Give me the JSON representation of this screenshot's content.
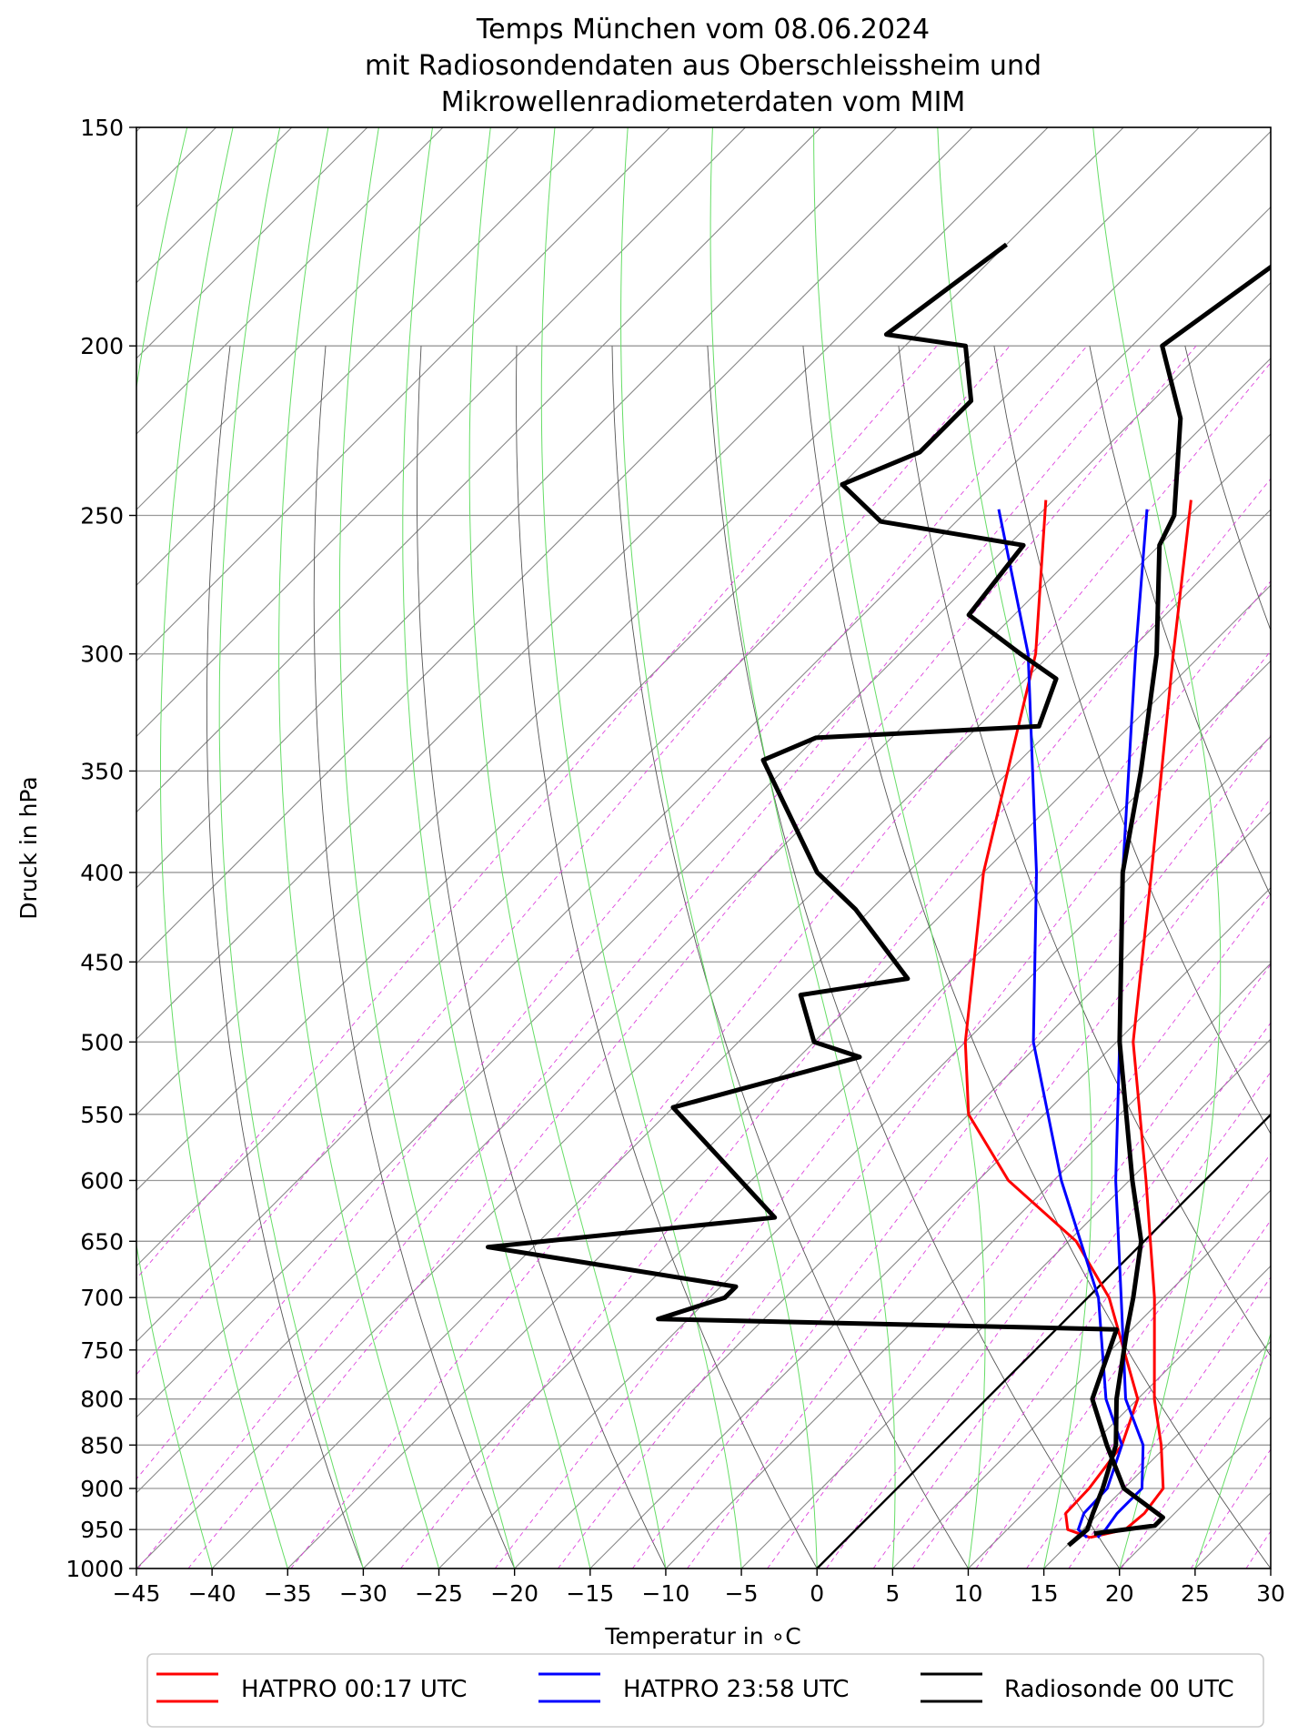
{
  "chart_data": {
    "type": "line",
    "title_lines": [
      "Temps München vom 08.06.2024",
      "mit Radiosondendaten aus Oberschleissheim und",
      "Mikrowellenradiometerdaten vom MIM"
    ],
    "xlabel": "Temperatur in ∘C",
    "ylabel": "Druck in hPa",
    "xlim": [
      -45,
      30
    ],
    "ylim": [
      1000,
      150
    ],
    "y_scale": "log",
    "projection": "skew-T log-p",
    "grid": true,
    "legend_position": "bottom-center",
    "x_ticks": [
      "−45",
      "−40",
      "−35",
      "−30",
      "−25",
      "−20",
      "−15",
      "−10",
      "−5",
      "0",
      "5",
      "10",
      "15",
      "20",
      "25",
      "30"
    ],
    "y_ticks": [
      "150",
      "200",
      "250",
      "300",
      "350",
      "400",
      "450",
      "500",
      "550",
      "600",
      "650",
      "700",
      "750",
      "800",
      "850",
      "900",
      "950",
      "1000"
    ],
    "x_tick_values": [
      -45,
      -40,
      -35,
      -30,
      -25,
      -20,
      -15,
      -10,
      -5,
      0,
      5,
      10,
      15,
      20,
      25,
      30
    ],
    "y_tick_values": [
      150,
      200,
      250,
      300,
      350,
      400,
      450,
      500,
      550,
      600,
      650,
      700,
      750,
      800,
      850,
      900,
      950,
      1000
    ],
    "background_colors": {
      "isotherm_and_isobar": "#888888",
      "dry_adiabat": "#555555",
      "moist_adiabat": "#66dd66",
      "mixing_ratio": "#dd44dd",
      "zero_isotherm": "#000000"
    },
    "series": [
      {
        "name": "HATPRO 00:17 UTC",
        "color": "#ff0000",
        "temperature": [
          [
            960,
            16.0
          ],
          [
            950,
            17.8
          ],
          [
            930,
            18.0
          ],
          [
            900,
            17.6
          ],
          [
            850,
            14.6
          ],
          [
            800,
            11.1
          ],
          [
            700,
            4.4
          ],
          [
            600,
            -3.9
          ],
          [
            500,
            -13.9
          ],
          [
            400,
            -23.9
          ],
          [
            300,
            -36.9
          ],
          [
            245,
            -45.9
          ]
        ],
        "dewpoint": [
          [
            960,
            16.0
          ],
          [
            950,
            14.0
          ],
          [
            930,
            12.8
          ],
          [
            900,
            12.7
          ],
          [
            850,
            12.0
          ],
          [
            800,
            10.0
          ],
          [
            700,
            1.4
          ],
          [
            650,
            -4.5
          ],
          [
            600,
            -13.0
          ],
          [
            550,
            -20.0
          ],
          [
            500,
            -25.0
          ],
          [
            400,
            -35.0
          ],
          [
            300,
            -46.0
          ],
          [
            245,
            -55.5
          ]
        ]
      },
      {
        "name": "HATPRO 23:58 UTC",
        "color": "#0000ff",
        "temperature": [
          [
            960,
            16.5
          ],
          [
            950,
            16.5
          ],
          [
            930,
            16.2
          ],
          [
            900,
            16.2
          ],
          [
            850,
            13.4
          ],
          [
            800,
            9.2
          ],
          [
            700,
            2.2
          ],
          [
            600,
            -5.9
          ],
          [
            500,
            -14.8
          ],
          [
            400,
            -25.8
          ],
          [
            300,
            -39.4
          ],
          [
            248,
            -48.2
          ]
        ],
        "dewpoint": [
          [
            960,
            15.8
          ],
          [
            950,
            14.7
          ],
          [
            930,
            14.0
          ],
          [
            900,
            13.9
          ],
          [
            850,
            12.0
          ],
          [
            800,
            7.9
          ],
          [
            700,
            0.7
          ],
          [
            600,
            -9.5
          ],
          [
            500,
            -20.5
          ],
          [
            400,
            -31.5
          ],
          [
            300,
            -46.5
          ],
          [
            248,
            -58.0
          ]
        ]
      },
      {
        "name": "Radiosonde 00 UTC",
        "color": "#000000",
        "temperature": [
          [
            970,
            15.1
          ],
          [
            950,
            15.3
          ],
          [
            930,
            14.6
          ],
          [
            900,
            13.6
          ],
          [
            850,
            11.6
          ],
          [
            800,
            8.6
          ],
          [
            730,
            4.7
          ],
          [
            700,
            3.0
          ],
          [
            650,
            -0.2
          ],
          [
            600,
            -4.8
          ],
          [
            500,
            -14.8
          ],
          [
            400,
            -25.8
          ],
          [
            350,
            -31.3
          ],
          [
            300,
            -38.0
          ],
          [
            260,
            -45.0
          ],
          [
            250,
            -46.0
          ],
          [
            220,
            -52.0
          ],
          [
            200,
            -58.0
          ],
          [
            180,
            -56.0
          ],
          [
            165,
            -53.0
          ],
          [
            150,
            -55.0
          ]
        ],
        "dewpoint": [
          [
            955,
            16.0
          ],
          [
            945,
            19.5
          ],
          [
            935,
            19.5
          ],
          [
            900,
            15.0
          ],
          [
            850,
            11.0
          ],
          [
            800,
            7.0
          ],
          [
            730,
            4.0
          ],
          [
            720,
            -27.0
          ],
          [
            700,
            -24.0
          ],
          [
            690,
            -24.0
          ],
          [
            655,
            -43.0
          ],
          [
            630,
            -26.0
          ],
          [
            545,
            -40.0
          ],
          [
            510,
            -31.0
          ],
          [
            500,
            -35.0
          ],
          [
            470,
            -39.0
          ],
          [
            460,
            -33.0
          ],
          [
            420,
            -41.0
          ],
          [
            400,
            -46.0
          ],
          [
            345,
            -57.0
          ],
          [
            335,
            -55.0
          ],
          [
            330,
            -41.0
          ],
          [
            310,
            -43.0
          ],
          [
            300,
            -47.0
          ],
          [
            285,
            -53.0
          ],
          [
            260,
            -54.0
          ],
          [
            252,
            -65.0
          ],
          [
            240,
            -70.0
          ],
          [
            230,
            -67.0
          ],
          [
            215,
            -67.0
          ],
          [
            200,
            -71.0
          ],
          [
            197,
            -77.0
          ],
          [
            175,
            -75.0
          ]
        ]
      }
    ]
  }
}
